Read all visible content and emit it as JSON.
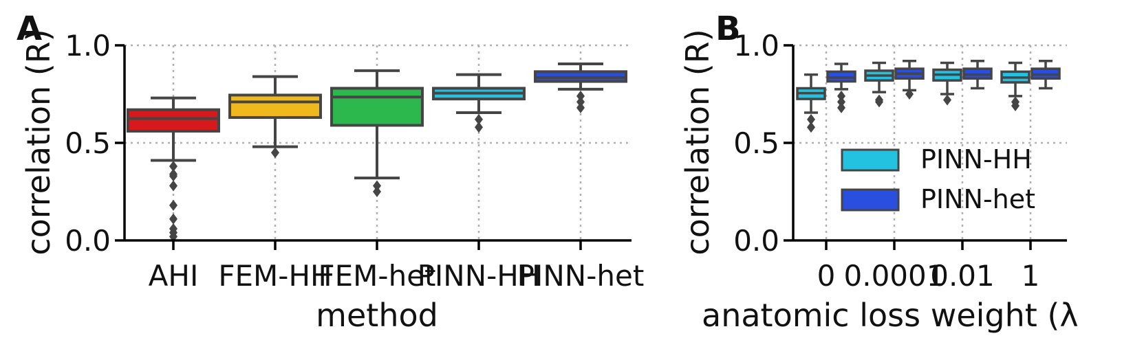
{
  "chart_data": [
    {
      "panel": "A",
      "type": "box",
      "xlabel": "method",
      "ylabel": "correlation (R)",
      "ylim": [
        0.0,
        1.0
      ],
      "yticks": [
        "0.0",
        "0.5",
        "1.0"
      ],
      "grid": true,
      "categories": [
        "AHI",
        "FEM-HH",
        "FEM-het",
        "PINN-HH",
        "PINN-het"
      ],
      "boxes": [
        {
          "category": "AHI",
          "color": "#d7191c",
          "whisker_low": 0.41,
          "q1": 0.56,
          "median": 0.625,
          "q3": 0.67,
          "whisker_high": 0.73,
          "outliers": [
            0.38,
            0.34,
            0.33,
            0.28,
            0.18,
            0.11,
            0.06,
            0.04,
            0.02
          ]
        },
        {
          "category": "FEM-HH",
          "color": "#f0b81c",
          "whisker_low": 0.48,
          "q1": 0.63,
          "median": 0.71,
          "q3": 0.745,
          "whisker_high": 0.84,
          "outliers": [
            0.45
          ]
        },
        {
          "category": "FEM-het",
          "color": "#2db84d",
          "whisker_low": 0.32,
          "q1": 0.59,
          "median": 0.735,
          "q3": 0.78,
          "whisker_high": 0.87,
          "outliers": [
            0.28,
            0.25
          ]
        },
        {
          "category": "PINN-HH",
          "color": "#23c2e0",
          "whisker_low": 0.655,
          "q1": 0.725,
          "median": 0.755,
          "q3": 0.78,
          "whisker_high": 0.85,
          "outliers": [
            0.62,
            0.58
          ]
        },
        {
          "category": "PINN-het",
          "color": "#2a4fe0",
          "whisker_low": 0.775,
          "q1": 0.815,
          "median": 0.835,
          "q3": 0.865,
          "whisker_high": 0.905,
          "outliers": [
            0.74,
            0.71,
            0.68
          ]
        }
      ]
    },
    {
      "panel": "B",
      "type": "box",
      "xlabel": "anatomic loss weight (λ",
      "ylabel": "correlation (R)",
      "ylim": [
        0.0,
        1.0
      ],
      "yticks": [
        "0.0",
        "0.5",
        "1.0"
      ],
      "grid": true,
      "categories": [
        "0",
        "0.0001",
        "0.01",
        "1"
      ],
      "legend": {
        "placement": "lower-right",
        "entries": [
          {
            "label": "PINN-HH",
            "color": "#23c2e0"
          },
          {
            "label": "PINN-het",
            "color": "#2a4fe0"
          }
        ]
      },
      "series": [
        {
          "name": "PINN-HH",
          "color": "#23c2e0",
          "boxes": [
            {
              "category": "0",
              "whisker_low": 0.655,
              "q1": 0.725,
              "median": 0.755,
              "q3": 0.78,
              "whisker_high": 0.85,
              "outliers": [
                0.62,
                0.58
              ]
            },
            {
              "category": "0.0001",
              "whisker_low": 0.76,
              "q1": 0.82,
              "median": 0.845,
              "q3": 0.87,
              "whisker_high": 0.91,
              "outliers": [
                0.72,
                0.71
              ]
            },
            {
              "category": "0.01",
              "whisker_low": 0.75,
              "q1": 0.82,
              "median": 0.85,
              "q3": 0.875,
              "whisker_high": 0.91,
              "outliers": [
                0.72
              ]
            },
            {
              "category": "1",
              "whisker_low": 0.74,
              "q1": 0.81,
              "median": 0.835,
              "q3": 0.865,
              "whisker_high": 0.91,
              "outliers": [
                0.71,
                0.69
              ]
            }
          ]
        },
        {
          "name": "PINN-het",
          "color": "#2a4fe0",
          "boxes": [
            {
              "category": "0",
              "whisker_low": 0.775,
              "q1": 0.815,
              "median": 0.835,
              "q3": 0.865,
              "whisker_high": 0.905,
              "outliers": [
                0.74,
                0.71,
                0.68
              ]
            },
            {
              "category": "0.0001",
              "whisker_low": 0.77,
              "q1": 0.83,
              "median": 0.855,
              "q3": 0.88,
              "whisker_high": 0.92,
              "outliers": [
                0.75
              ]
            },
            {
              "category": "0.01",
              "whisker_low": 0.78,
              "q1": 0.83,
              "median": 0.85,
              "q3": 0.88,
              "whisker_high": 0.92,
              "outliers": []
            },
            {
              "category": "1",
              "whisker_low": 0.78,
              "q1": 0.83,
              "median": 0.85,
              "q3": 0.88,
              "whisker_high": 0.92,
              "outliers": []
            }
          ]
        }
      ]
    }
  ]
}
